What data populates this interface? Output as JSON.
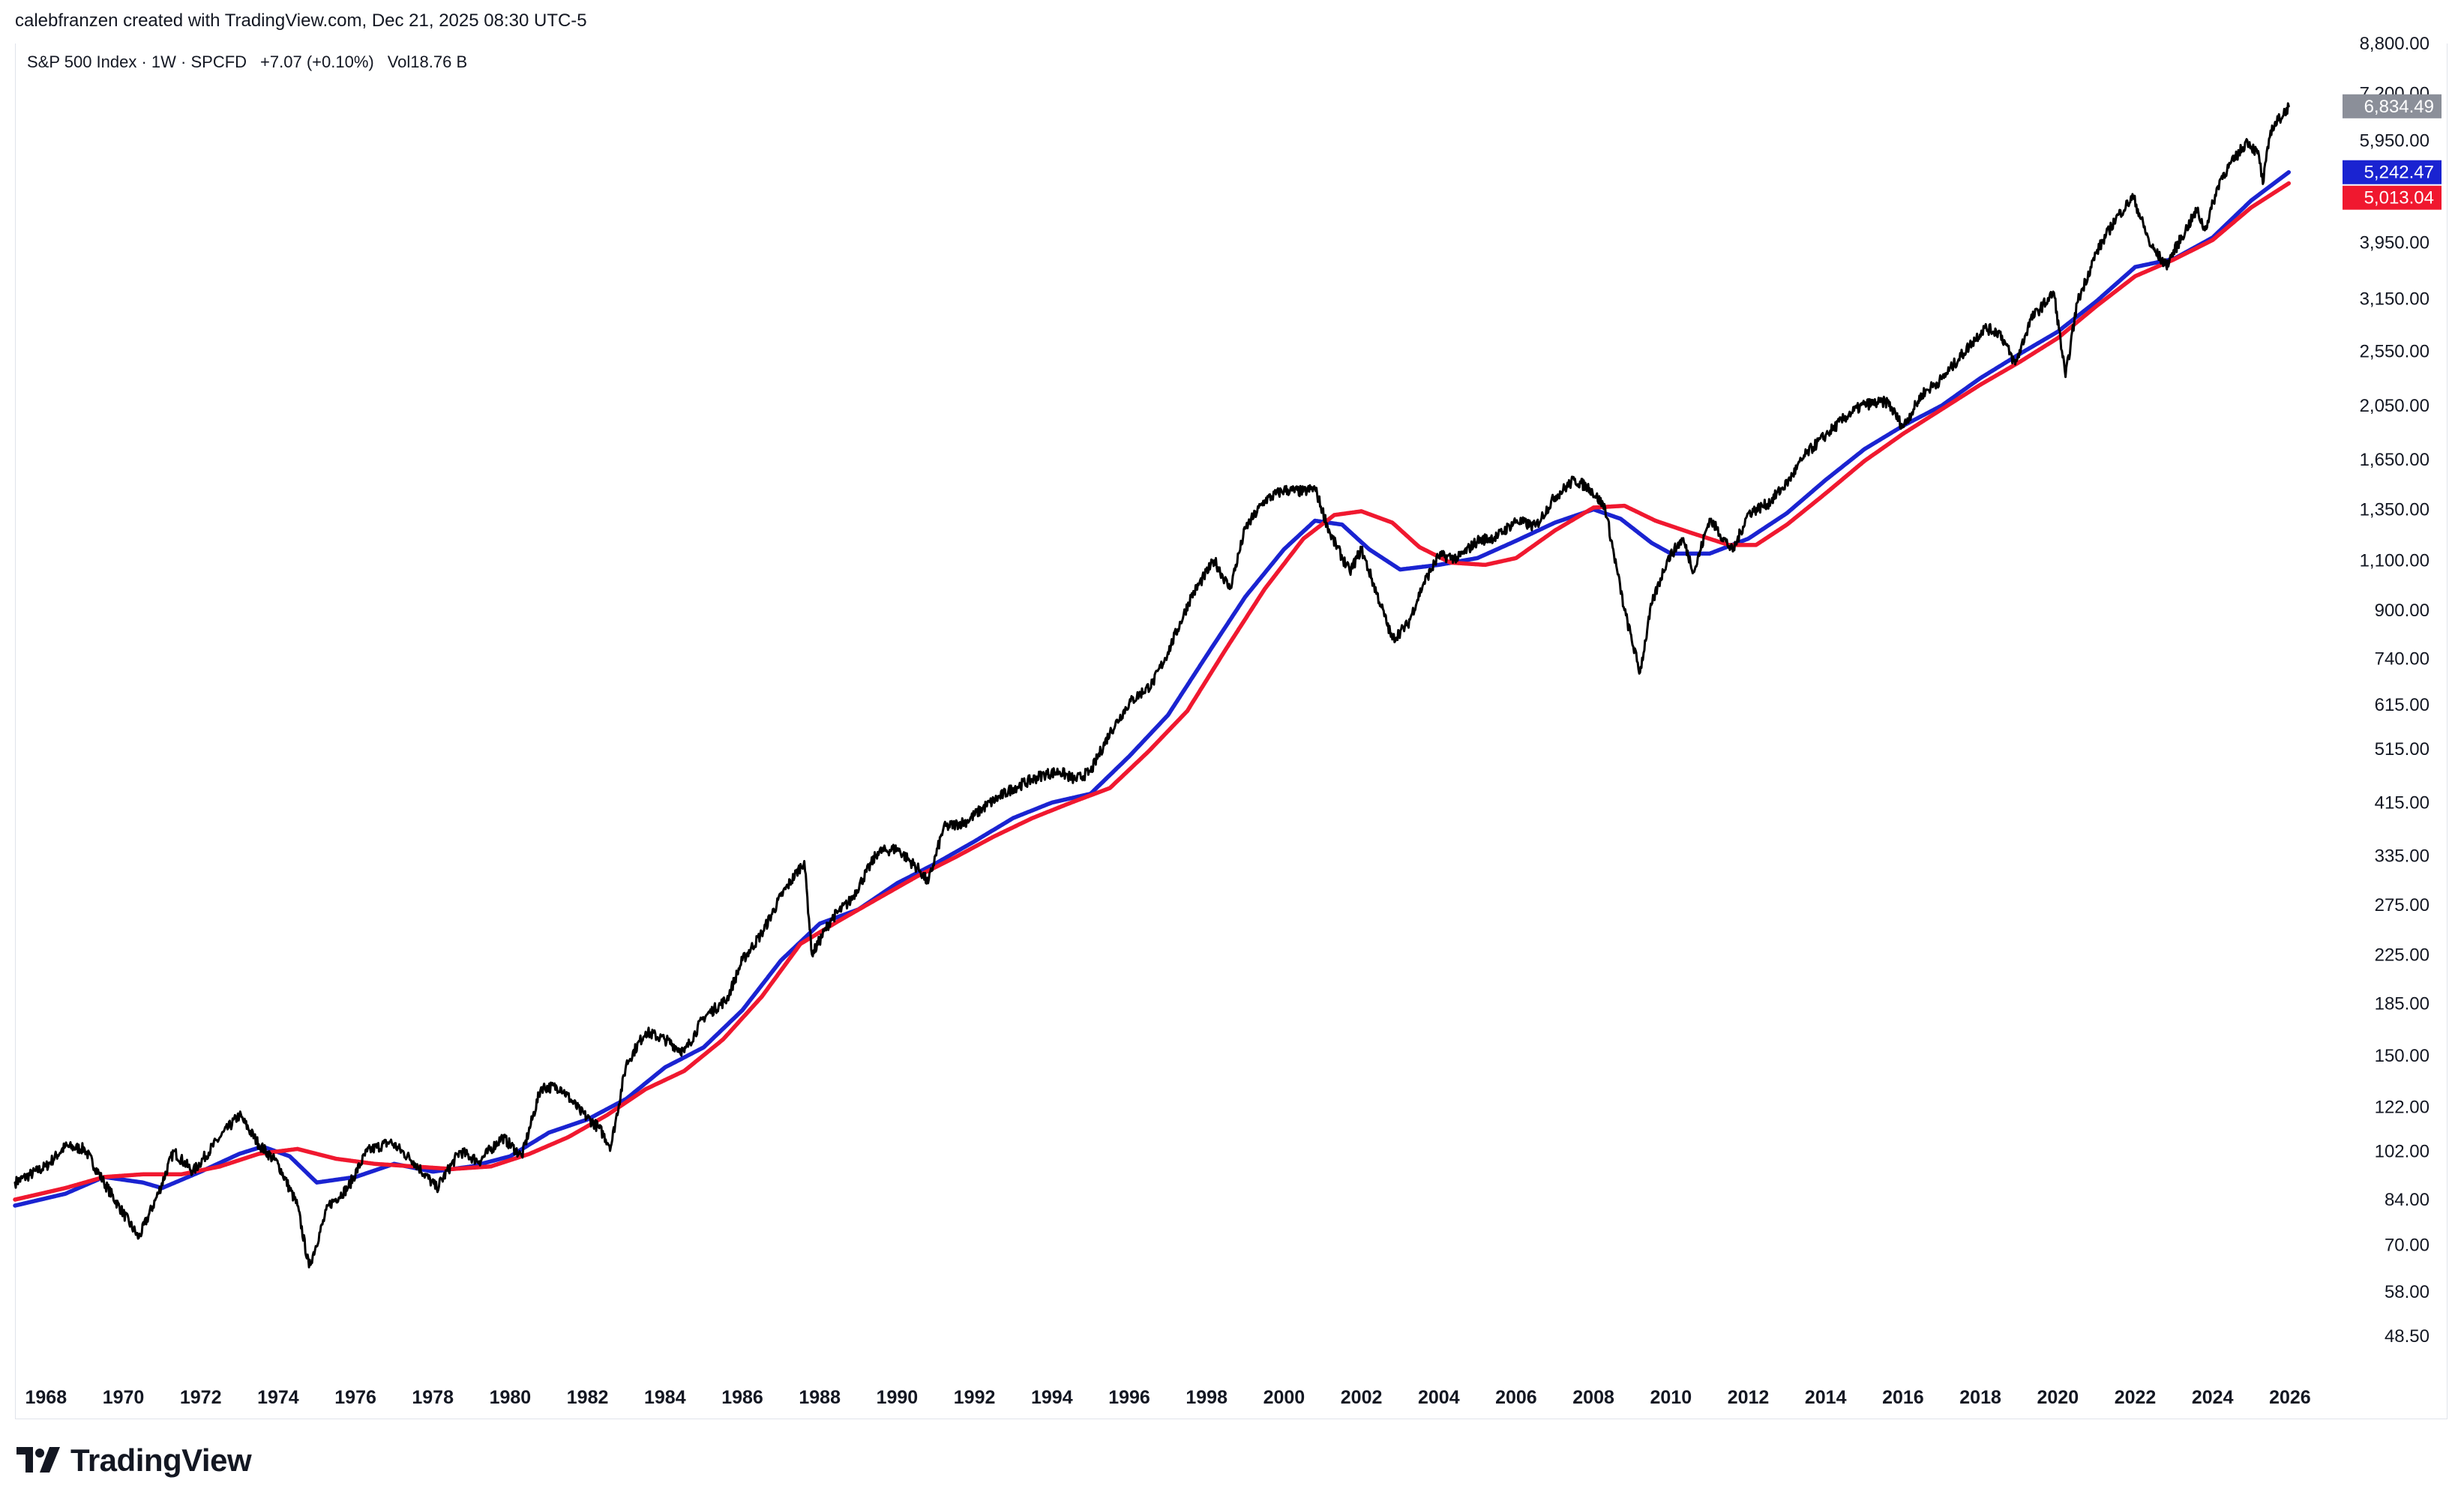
{
  "header": {
    "attribution": "calebfranzen created with TradingView.com, Dec 21, 2025 08:30 UTC-5"
  },
  "legend": {
    "symbol": "S&P 500 Index · 1W · SPCFD",
    "change": "+7.07 (+0.10%)",
    "volume": "Vol18.76 B"
  },
  "branding": {
    "name": "TradingView"
  },
  "colors": {
    "price": "#000000",
    "ma_blue": "#1a23d1",
    "ma_red": "#f0182f",
    "last_badge": "#8b8f99",
    "background": "#ffffff"
  },
  "chart_data": {
    "type": "line",
    "scale": "log",
    "title": "S&P 500 Index · 1W · SPCFD",
    "xlim": [
      1967.2,
      2026.7
    ],
    "ylim": [
      43,
      8800
    ],
    "x_ticks": [
      1968,
      1970,
      1972,
      1974,
      1976,
      1978,
      1980,
      1982,
      1984,
      1986,
      1988,
      1990,
      1992,
      1994,
      1996,
      1998,
      2000,
      2002,
      2004,
      2006,
      2008,
      2010,
      2012,
      2014,
      2016,
      2018,
      2020,
      2022,
      2024,
      2026
    ],
    "y_ticks": [
      "8,800.00",
      "7,200.00",
      "5,950.00",
      "3,950.00",
      "3,150.00",
      "2,550.00",
      "2,050.00",
      "1,650.00",
      "1,350.00",
      "1,100.00",
      "900.00",
      "740.00",
      "615.00",
      "515.00",
      "415.00",
      "335.00",
      "275.00",
      "225.00",
      "185.00",
      "150.00",
      "122.00",
      "102.00",
      "84.00",
      "70.00",
      "58.00",
      "48.50"
    ],
    "series": [
      {
        "name": "S&P 500 Index",
        "color": "#000000",
        "points": [
          [
            1967.2,
            90
          ],
          [
            1968.0,
            96
          ],
          [
            1968.5,
            104
          ],
          [
            1969.0,
            103
          ],
          [
            1969.5,
            90
          ],
          [
            1970.4,
            72
          ],
          [
            1970.9,
            86
          ],
          [
            1971.3,
            102
          ],
          [
            1971.8,
            94
          ],
          [
            1972.5,
            108
          ],
          [
            1973.0,
            118
          ],
          [
            1973.5,
            105
          ],
          [
            1974.0,
            97
          ],
          [
            1974.5,
            82
          ],
          [
            1974.8,
            64
          ],
          [
            1975.3,
            82
          ],
          [
            1975.8,
            88
          ],
          [
            1976.3,
            102
          ],
          [
            1976.9,
            106
          ],
          [
            1977.5,
            98
          ],
          [
            1978.1,
            88
          ],
          [
            1978.7,
            102
          ],
          [
            1979.2,
            98
          ],
          [
            1979.8,
            108
          ],
          [
            1980.3,
            100
          ],
          [
            1980.8,
            132
          ],
          [
            1981.3,
            132
          ],
          [
            1981.8,
            120
          ],
          [
            1982.3,
            112
          ],
          [
            1982.6,
            104
          ],
          [
            1983.0,
            145
          ],
          [
            1983.5,
            165
          ],
          [
            1984.0,
            160
          ],
          [
            1984.5,
            152
          ],
          [
            1985.0,
            175
          ],
          [
            1985.6,
            188
          ],
          [
            1986.0,
            220
          ],
          [
            1986.5,
            245
          ],
          [
            1987.0,
            285
          ],
          [
            1987.6,
            328
          ],
          [
            1987.8,
            225
          ],
          [
            1988.3,
            260
          ],
          [
            1988.8,
            280
          ],
          [
            1989.5,
            340
          ],
          [
            1990.0,
            345
          ],
          [
            1990.6,
            315
          ],
          [
            1990.8,
            300
          ],
          [
            1991.2,
            375
          ],
          [
            1991.8,
            385
          ],
          [
            1992.3,
            410
          ],
          [
            1993.0,
            440
          ],
          [
            1993.8,
            465
          ],
          [
            1994.2,
            470
          ],
          [
            1994.6,
            455
          ],
          [
            1995.0,
            470
          ],
          [
            1995.5,
            550
          ],
          [
            1996.0,
            620
          ],
          [
            1996.6,
            670
          ],
          [
            1997.0,
            760
          ],
          [
            1997.6,
            950
          ],
          [
            1998.2,
            1100
          ],
          [
            1998.6,
            980
          ],
          [
            1999.0,
            1250
          ],
          [
            1999.5,
            1400
          ],
          [
            2000.0,
            1460
          ],
          [
            2000.5,
            1450
          ],
          [
            2000.8,
            1470
          ],
          [
            2001.2,
            1220
          ],
          [
            2001.7,
            1050
          ],
          [
            2002.0,
            1150
          ],
          [
            2002.5,
            920
          ],
          [
            2002.8,
            800
          ],
          [
            2003.2,
            850
          ],
          [
            2003.6,
            1000
          ],
          [
            2004.0,
            1120
          ],
          [
            2004.5,
            1110
          ],
          [
            2005.0,
            1190
          ],
          [
            2005.5,
            1210
          ],
          [
            2006.0,
            1290
          ],
          [
            2006.5,
            1260
          ],
          [
            2007.0,
            1420
          ],
          [
            2007.5,
            1520
          ],
          [
            2007.9,
            1470
          ],
          [
            2008.3,
            1360
          ],
          [
            2008.8,
            900
          ],
          [
            2009.2,
            700
          ],
          [
            2009.5,
            920
          ],
          [
            2009.9,
            1100
          ],
          [
            2010.3,
            1200
          ],
          [
            2010.6,
            1050
          ],
          [
            2011.0,
            1300
          ],
          [
            2011.6,
            1140
          ],
          [
            2012.0,
            1330
          ],
          [
            2012.5,
            1380
          ],
          [
            2013.0,
            1500
          ],
          [
            2013.5,
            1690
          ],
          [
            2014.0,
            1820
          ],
          [
            2014.6,
            1980
          ],
          [
            2015.0,
            2060
          ],
          [
            2015.6,
            2080
          ],
          [
            2016.0,
            1880
          ],
          [
            2016.5,
            2150
          ],
          [
            2017.0,
            2280
          ],
          [
            2017.8,
            2650
          ],
          [
            2018.1,
            2800
          ],
          [
            2018.5,
            2750
          ],
          [
            2018.9,
            2420
          ],
          [
            2019.3,
            2900
          ],
          [
            2019.9,
            3230
          ],
          [
            2020.2,
            2300
          ],
          [
            2020.5,
            3100
          ],
          [
            2021.0,
            3800
          ],
          [
            2021.5,
            4350
          ],
          [
            2021.95,
            4750
          ],
          [
            2022.4,
            3900
          ],
          [
            2022.8,
            3600
          ],
          [
            2023.3,
            4150
          ],
          [
            2023.6,
            4500
          ],
          [
            2023.8,
            4150
          ],
          [
            2024.2,
            5100
          ],
          [
            2024.9,
            5950
          ],
          [
            2025.2,
            5600
          ],
          [
            2025.3,
            5000
          ],
          [
            2025.5,
            6200
          ],
          [
            2025.97,
            6834.49
          ]
        ]
      },
      {
        "name": "Moving Average (blue)",
        "color": "#1a23d1",
        "points": [
          [
            1967.2,
            82
          ],
          [
            1968.5,
            86
          ],
          [
            1969.5,
            92
          ],
          [
            1970.5,
            90
          ],
          [
            1971.0,
            88
          ],
          [
            1972.0,
            94
          ],
          [
            1973.0,
            101
          ],
          [
            1973.6,
            104
          ],
          [
            1974.3,
            100
          ],
          [
            1975.0,
            90
          ],
          [
            1976.0,
            92
          ],
          [
            1977.0,
            97
          ],
          [
            1978.0,
            94
          ],
          [
            1979.0,
            96
          ],
          [
            1980.0,
            100
          ],
          [
            1981.0,
            110
          ],
          [
            1982.0,
            116
          ],
          [
            1983.0,
            126
          ],
          [
            1984.0,
            143
          ],
          [
            1985.0,
            155
          ],
          [
            1986.0,
            180
          ],
          [
            1987.0,
            220
          ],
          [
            1988.0,
            255
          ],
          [
            1989.0,
            270
          ],
          [
            1990.0,
            300
          ],
          [
            1991.0,
            325
          ],
          [
            1992.0,
            355
          ],
          [
            1993.0,
            390
          ],
          [
            1994.0,
            415
          ],
          [
            1995.0,
            430
          ],
          [
            1996.0,
            500
          ],
          [
            1997.0,
            590
          ],
          [
            1998.0,
            750
          ],
          [
            1999.0,
            950
          ],
          [
            2000.0,
            1150
          ],
          [
            2000.8,
            1290
          ],
          [
            2001.5,
            1270
          ],
          [
            2002.2,
            1150
          ],
          [
            2003.0,
            1060
          ],
          [
            2004.0,
            1080
          ],
          [
            2005.0,
            1110
          ],
          [
            2006.0,
            1190
          ],
          [
            2007.0,
            1280
          ],
          [
            2008.0,
            1350
          ],
          [
            2008.7,
            1300
          ],
          [
            2009.5,
            1180
          ],
          [
            2010.0,
            1130
          ],
          [
            2011.0,
            1130
          ],
          [
            2012.0,
            1200
          ],
          [
            2013.0,
            1330
          ],
          [
            2014.0,
            1520
          ],
          [
            2015.0,
            1720
          ],
          [
            2016.0,
            1890
          ],
          [
            2017.0,
            2050
          ],
          [
            2018.0,
            2290
          ],
          [
            2019.0,
            2520
          ],
          [
            2020.0,
            2760
          ],
          [
            2021.0,
            3120
          ],
          [
            2022.0,
            3580
          ],
          [
            2023.0,
            3700
          ],
          [
            2024.0,
            4030
          ],
          [
            2025.0,
            4680
          ],
          [
            2025.97,
            5242.47
          ]
        ]
      },
      {
        "name": "Moving Average (red)",
        "color": "#f0182f",
        "points": [
          [
            1967.2,
            84
          ],
          [
            1968.5,
            88
          ],
          [
            1969.5,
            92
          ],
          [
            1970.5,
            93
          ],
          [
            1971.5,
            93
          ],
          [
            1972.5,
            96
          ],
          [
            1973.5,
            101
          ],
          [
            1974.5,
            103
          ],
          [
            1975.5,
            99
          ],
          [
            1976.5,
            97
          ],
          [
            1977.5,
            96
          ],
          [
            1978.5,
            95
          ],
          [
            1979.5,
            96
          ],
          [
            1980.5,
            101
          ],
          [
            1981.5,
            108
          ],
          [
            1982.5,
            118
          ],
          [
            1983.5,
            131
          ],
          [
            1984.5,
            141
          ],
          [
            1985.5,
            160
          ],
          [
            1986.5,
            190
          ],
          [
            1987.5,
            235
          ],
          [
            1988.5,
            258
          ],
          [
            1989.5,
            282
          ],
          [
            1990.5,
            308
          ],
          [
            1991.5,
            333
          ],
          [
            1992.5,
            362
          ],
          [
            1993.5,
            390
          ],
          [
            1994.5,
            415
          ],
          [
            1995.5,
            440
          ],
          [
            1996.5,
            510
          ],
          [
            1997.5,
            600
          ],
          [
            1998.5,
            770
          ],
          [
            1999.5,
            980
          ],
          [
            2000.5,
            1200
          ],
          [
            2001.3,
            1320
          ],
          [
            2002.0,
            1340
          ],
          [
            2002.8,
            1280
          ],
          [
            2003.5,
            1160
          ],
          [
            2004.3,
            1090
          ],
          [
            2005.2,
            1080
          ],
          [
            2006.0,
            1110
          ],
          [
            2007.0,
            1240
          ],
          [
            2008.0,
            1360
          ],
          [
            2008.8,
            1370
          ],
          [
            2009.6,
            1290
          ],
          [
            2010.5,
            1230
          ],
          [
            2011.5,
            1170
          ],
          [
            2012.2,
            1170
          ],
          [
            2013.0,
            1270
          ],
          [
            2014.0,
            1440
          ],
          [
            2015.0,
            1640
          ],
          [
            2016.0,
            1830
          ],
          [
            2017.0,
            2020
          ],
          [
            2018.0,
            2230
          ],
          [
            2019.0,
            2440
          ],
          [
            2020.0,
            2690
          ],
          [
            2021.0,
            3060
          ],
          [
            2022.0,
            3450
          ],
          [
            2023.0,
            3690
          ],
          [
            2024.0,
            3990
          ],
          [
            2025.0,
            4550
          ],
          [
            2025.97,
            5013.04
          ]
        ]
      }
    ],
    "price_badges": [
      {
        "label": "6,834.49",
        "value": 6834.49,
        "color": "#8b8f99"
      },
      {
        "label": "5,242.47",
        "value": 5242.47,
        "color": "#1a23d1"
      },
      {
        "label": "5,013.04",
        "value": 5013.04,
        "color": "#f0182f"
      }
    ]
  }
}
